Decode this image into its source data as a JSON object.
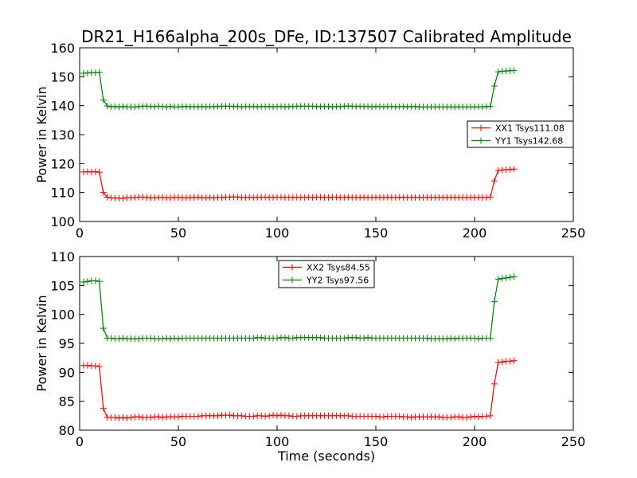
{
  "chart_data": [
    {
      "type": "line",
      "title": "DR21_H166alpha_200s_DFe, ID:137507 Calibrated Amplitude",
      "xlabel": "",
      "ylabel": "Power in Kelvin",
      "xlim": [
        0,
        250
      ],
      "ylim": [
        100,
        160
      ],
      "xticks": [
        "0",
        "50",
        "100",
        "150",
        "200",
        "250"
      ],
      "yticks": [
        "100",
        "110",
        "120",
        "130",
        "140",
        "150",
        "160"
      ],
      "legend_position": "center-right",
      "grid": false,
      "x": [
        2,
        4,
        6,
        8,
        10,
        12,
        14,
        16,
        18,
        20,
        22,
        24,
        26,
        28,
        30,
        32,
        34,
        36,
        38,
        40,
        42,
        44,
        46,
        48,
        50,
        52,
        54,
        56,
        58,
        60,
        62,
        64,
        66,
        68,
        70,
        72,
        74,
        76,
        78,
        80,
        82,
        84,
        86,
        88,
        90,
        92,
        94,
        96,
        98,
        100,
        102,
        104,
        106,
        108,
        110,
        112,
        114,
        116,
        118,
        120,
        122,
        124,
        126,
        128,
        130,
        132,
        134,
        136,
        138,
        140,
        142,
        144,
        146,
        148,
        150,
        152,
        154,
        156,
        158,
        160,
        162,
        164,
        166,
        168,
        170,
        172,
        174,
        176,
        178,
        180,
        182,
        184,
        186,
        188,
        190,
        192,
        194,
        196,
        198,
        200,
        202,
        204,
        206,
        208,
        210,
        212,
        214,
        216,
        218,
        220
      ],
      "series": [
        {
          "name": "XX1 Tsys111.08",
          "color": "#ff0000",
          "values": [
            117.1,
            117.2,
            117.1,
            117.2,
            117.0,
            110.0,
            108.4,
            108.2,
            108.1,
            108.1,
            108.0,
            108.2,
            108.2,
            108.3,
            108.4,
            108.4,
            108.3,
            108.2,
            108.2,
            108.3,
            108.3,
            108.2,
            108.2,
            108.3,
            108.3,
            108.2,
            108.2,
            108.3,
            108.3,
            108.4,
            108.2,
            108.2,
            108.3,
            108.2,
            108.3,
            108.3,
            108.4,
            108.4,
            108.5,
            108.4,
            108.3,
            108.3,
            108.4,
            108.3,
            108.3,
            108.4,
            108.4,
            108.3,
            108.3,
            108.4,
            108.4,
            108.3,
            108.3,
            108.3,
            108.4,
            108.3,
            108.3,
            108.4,
            108.3,
            108.4,
            108.4,
            108.3,
            108.3,
            108.4,
            108.4,
            108.3,
            108.3,
            108.4,
            108.3,
            108.3,
            108.3,
            108.4,
            108.3,
            108.3,
            108.4,
            108.3,
            108.3,
            108.4,
            108.3,
            108.3,
            108.4,
            108.3,
            108.3,
            108.3,
            108.3,
            108.3,
            108.3,
            108.3,
            108.3,
            108.3,
            108.3,
            108.3,
            108.3,
            108.3,
            108.3,
            108.3,
            108.3,
            108.3,
            108.3,
            108.3,
            108.3,
            108.3,
            108.3,
            108.4,
            114.0,
            117.6,
            117.8,
            117.9,
            118.0,
            118.1
          ]
        },
        {
          "name": "YY1 Tsys142.68",
          "color": "#008000",
          "values": [
            151.2,
            151.3,
            151.4,
            151.4,
            151.5,
            142.0,
            139.9,
            139.6,
            139.7,
            139.6,
            139.7,
            139.6,
            139.6,
            139.6,
            139.7,
            139.8,
            139.8,
            139.7,
            139.7,
            139.8,
            139.7,
            139.6,
            139.7,
            139.6,
            139.6,
            139.7,
            139.7,
            139.6,
            139.7,
            139.6,
            139.7,
            139.6,
            139.7,
            139.7,
            139.7,
            139.8,
            139.8,
            139.8,
            139.7,
            139.7,
            139.6,
            139.7,
            139.7,
            139.7,
            139.6,
            139.7,
            139.7,
            139.7,
            139.6,
            139.7,
            139.7,
            139.6,
            139.7,
            139.7,
            139.8,
            139.8,
            139.8,
            139.8,
            139.8,
            139.7,
            139.7,
            139.7,
            139.7,
            139.6,
            139.7,
            139.7,
            139.8,
            139.9,
            139.8,
            139.7,
            139.8,
            139.7,
            139.7,
            139.6,
            139.7,
            139.7,
            139.6,
            139.7,
            139.7,
            139.6,
            139.7,
            139.7,
            139.6,
            139.7,
            139.7,
            139.6,
            139.6,
            139.6,
            139.6,
            139.6,
            139.6,
            139.6,
            139.6,
            139.6,
            139.6,
            139.6,
            139.6,
            139.6,
            139.6,
            139.6,
            139.6,
            139.6,
            139.7,
            139.7,
            146.8,
            151.7,
            151.9,
            152.0,
            152.1,
            152.2
          ]
        }
      ]
    },
    {
      "type": "line",
      "title": "",
      "xlabel": "Time (seconds)",
      "ylabel": "Power in Kelvin",
      "xlim": [
        0,
        250
      ],
      "ylim": [
        80,
        110
      ],
      "xticks": [
        "0",
        "50",
        "100",
        "150",
        "200",
        "250"
      ],
      "yticks": [
        "80",
        "85",
        "90",
        "95",
        "100",
        "105",
        "110"
      ],
      "legend_position": "upper-center",
      "grid": false,
      "x": [
        2,
        4,
        6,
        8,
        10,
        12,
        14,
        16,
        18,
        20,
        22,
        24,
        26,
        28,
        30,
        32,
        34,
        36,
        38,
        40,
        42,
        44,
        46,
        48,
        50,
        52,
        54,
        56,
        58,
        60,
        62,
        64,
        66,
        68,
        70,
        72,
        74,
        76,
        78,
        80,
        82,
        84,
        86,
        88,
        90,
        92,
        94,
        96,
        98,
        100,
        102,
        104,
        106,
        108,
        110,
        112,
        114,
        116,
        118,
        120,
        122,
        124,
        126,
        128,
        130,
        132,
        134,
        136,
        138,
        140,
        142,
        144,
        146,
        148,
        150,
        152,
        154,
        156,
        158,
        160,
        162,
        164,
        166,
        168,
        170,
        172,
        174,
        176,
        178,
        180,
        182,
        184,
        186,
        188,
        190,
        192,
        194,
        196,
        198,
        200,
        202,
        204,
        206,
        208,
        210,
        212,
        214,
        216,
        218,
        220
      ],
      "series": [
        {
          "name": "XX2 Tsys84.55",
          "color": "#ff0000",
          "values": [
            91.2,
            91.2,
            91.1,
            91.1,
            91.0,
            83.8,
            82.2,
            82.2,
            82.2,
            82.1,
            82.2,
            82.1,
            82.2,
            82.3,
            82.3,
            82.2,
            82.2,
            82.2,
            82.3,
            82.3,
            82.2,
            82.3,
            82.3,
            82.3,
            82.3,
            82.4,
            82.4,
            82.4,
            82.4,
            82.4,
            82.5,
            82.5,
            82.5,
            82.5,
            82.5,
            82.6,
            82.6,
            82.6,
            82.5,
            82.5,
            82.5,
            82.4,
            82.4,
            82.4,
            82.5,
            82.5,
            82.4,
            82.5,
            82.6,
            82.5,
            82.6,
            82.5,
            82.5,
            82.4,
            82.4,
            82.5,
            82.5,
            82.5,
            82.5,
            82.5,
            82.5,
            82.5,
            82.5,
            82.5,
            82.5,
            82.5,
            82.5,
            82.5,
            82.4,
            82.4,
            82.4,
            82.4,
            82.4,
            82.4,
            82.4,
            82.3,
            82.3,
            82.4,
            82.4,
            82.4,
            82.4,
            82.3,
            82.3,
            82.2,
            82.3,
            82.3,
            82.3,
            82.3,
            82.3,
            82.3,
            82.3,
            82.2,
            82.2,
            82.2,
            82.3,
            82.3,
            82.2,
            82.2,
            82.3,
            82.4,
            82.3,
            82.4,
            82.4,
            82.5,
            88.0,
            91.7,
            91.8,
            91.9,
            91.9,
            92.0
          ]
        },
        {
          "name": "YY2 Tsys97.56",
          "color": "#008000",
          "values": [
            105.6,
            105.7,
            105.8,
            105.8,
            105.7,
            97.6,
            95.9,
            95.9,
            95.8,
            95.8,
            95.9,
            95.8,
            95.8,
            95.8,
            95.8,
            95.9,
            95.9,
            95.9,
            95.8,
            95.8,
            95.8,
            95.9,
            95.8,
            95.9,
            95.8,
            95.9,
            95.9,
            95.9,
            95.9,
            95.9,
            95.9,
            95.9,
            95.9,
            95.9,
            95.9,
            95.9,
            95.9,
            95.9,
            95.9,
            95.9,
            95.9,
            95.9,
            95.9,
            95.9,
            96.0,
            96.0,
            95.9,
            95.9,
            95.9,
            95.9,
            96.0,
            96.0,
            95.9,
            95.9,
            96.0,
            96.0,
            96.0,
            96.0,
            96.0,
            96.0,
            96.0,
            95.9,
            95.9,
            95.9,
            95.9,
            95.9,
            95.9,
            96.0,
            96.0,
            96.0,
            95.9,
            95.9,
            96.0,
            95.9,
            95.9,
            95.9,
            95.9,
            95.9,
            95.9,
            95.9,
            95.9,
            95.9,
            95.9,
            95.9,
            95.9,
            95.9,
            95.9,
            95.9,
            95.8,
            95.8,
            95.8,
            95.8,
            95.8,
            95.9,
            95.8,
            95.9,
            95.9,
            95.9,
            95.9,
            95.9,
            95.8,
            95.9,
            95.9,
            95.9,
            102.2,
            106.1,
            106.2,
            106.3,
            106.4,
            106.5
          ]
        }
      ]
    }
  ]
}
